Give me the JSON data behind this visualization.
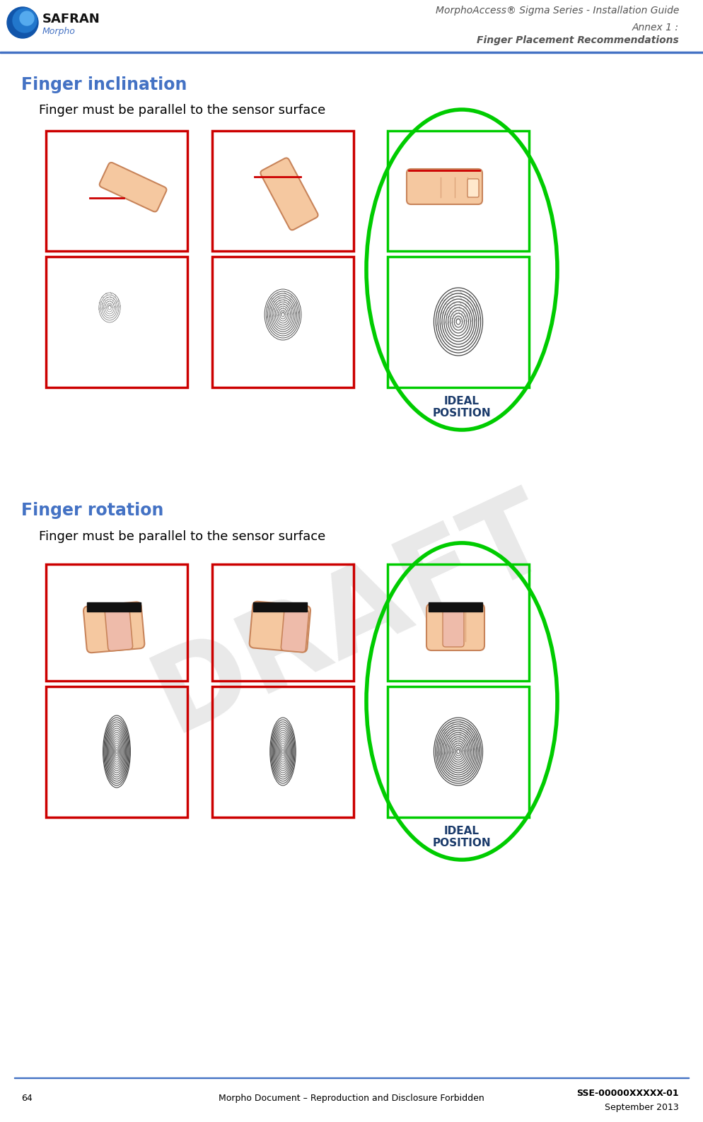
{
  "title_line1": "MorphoAccess® Sigma Series - Installation Guide",
  "title_line2": "Annex 1 :",
  "title_line3": "Finger Placement Recommendations",
  "section1_title": "Finger inclination",
  "section1_subtitle": "Finger must be parallel to the sensor surface",
  "section2_title": "Finger rotation",
  "section2_subtitle": "Finger must be parallel to the sensor surface",
  "ideal_position_text": "IDEAL\nPOSITION",
  "footer_left_num": "64",
  "footer_center": "Morpho Document – Reproduction and Disclosure Forbidden",
  "footer_right_line1": "SSE-00000XXXXX-01",
  "footer_right_line2": "September 2013",
  "bg_color": "#ffffff",
  "header_title_color": "#555555",
  "section_title_color": "#4472C4",
  "body_text_color": "#000000",
  "footer_text_color": "#000000",
  "red_box_color": "#cc0000",
  "green_box_color": "#00cc00",
  "green_oval_color": "#00cc00",
  "top_line_color": "#4472C4",
  "bottom_line_color": "#4472C4",
  "draft_color": "#c8c8c8",
  "skin_color": "#f5c8a0",
  "skin_edge_color": "#c8845a",
  "sensor_line_color": "#cc0000",
  "black_bar_color": "#111111",
  "fp_color": "#333333"
}
